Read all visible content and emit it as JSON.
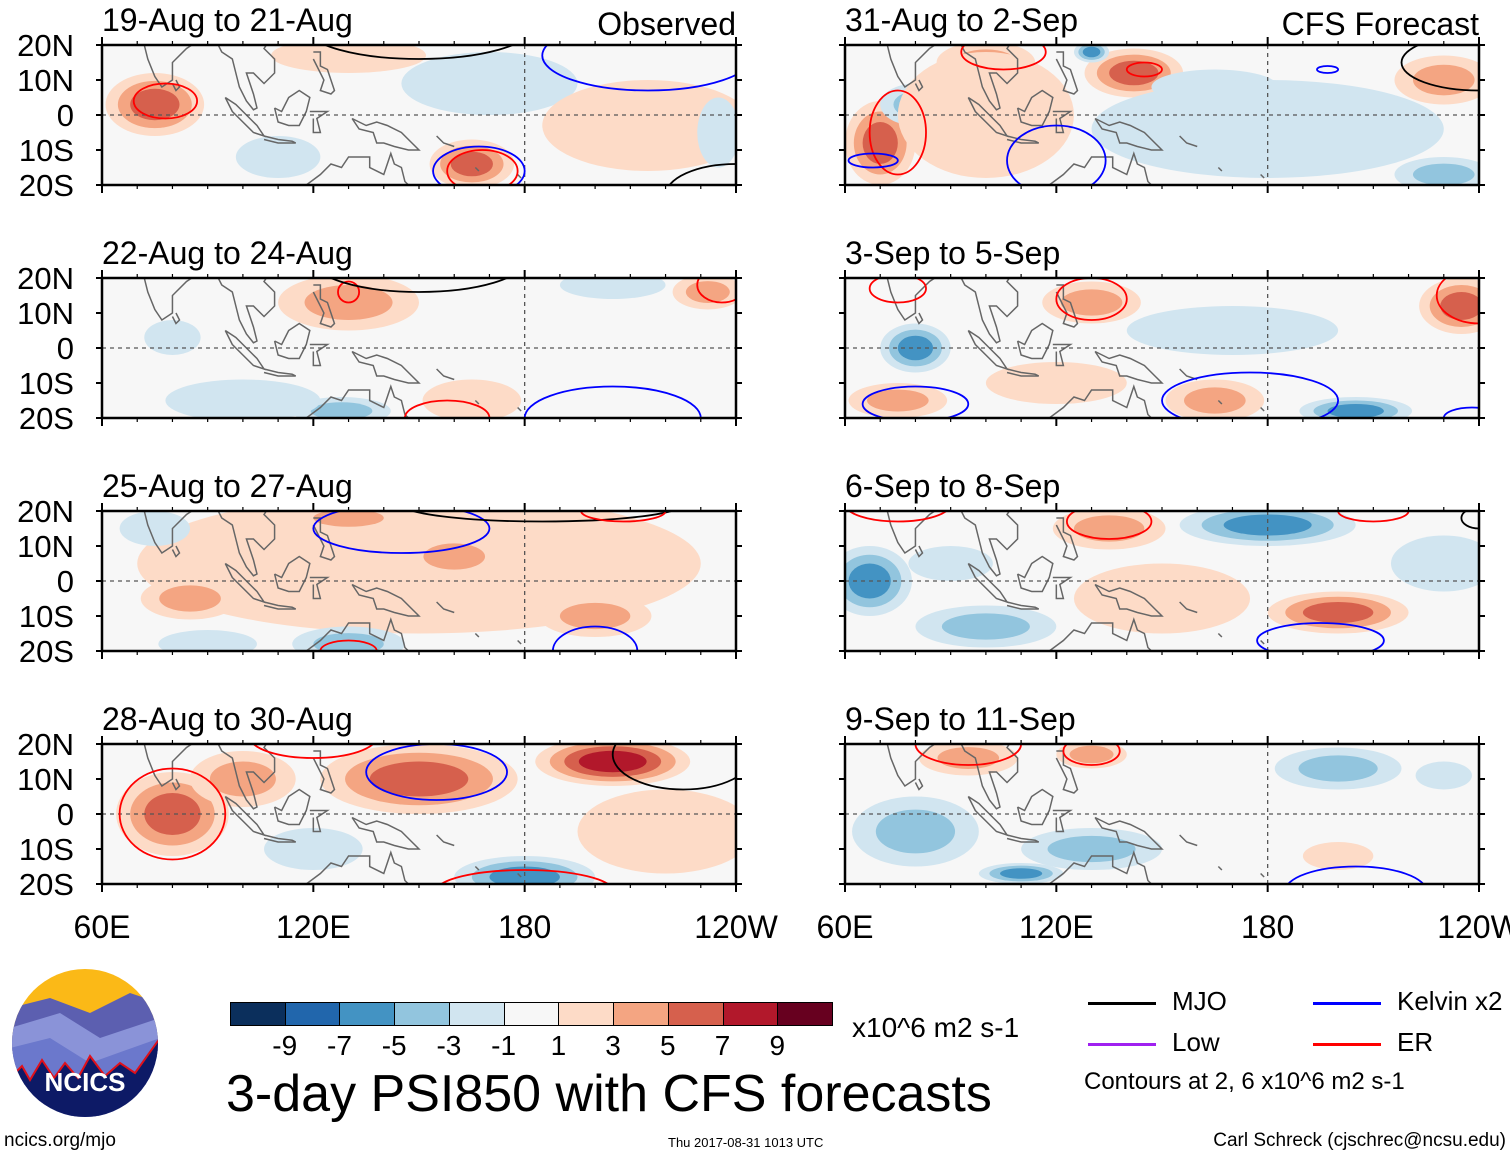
{
  "chart_data": {
    "type": "heatmap",
    "title": "3-day PSI850 with CFS forecasts",
    "units": "x10^6 m2 s-1",
    "contour_note": "Contours at 2, 6 x10^6 m2 s-1",
    "xticks": [
      "60E",
      "120E",
      "180",
      "120W"
    ],
    "yticks": [
      "20N",
      "10N",
      "0",
      "10S",
      "20S"
    ],
    "xlim": [
      60,
      240
    ],
    "ylim": [
      -20,
      20
    ],
    "colorbar": {
      "labels": [
        "-9",
        "-7",
        "-5",
        "-3",
        "-1",
        "1",
        "3",
        "5",
        "7",
        "9"
      ],
      "colors": [
        "#0b2f5c",
        "#2166ac",
        "#4393c3",
        "#92c5de",
        "#d1e5f0",
        "#f7f7f7",
        "#fddbc7",
        "#f4a582",
        "#d6604d",
        "#b2182b",
        "#67001f"
      ]
    },
    "legend": [
      {
        "label": "MJO",
        "color": "#000000"
      },
      {
        "label": "Kelvin x2",
        "color": "#0000ff"
      },
      {
        "label": "Low",
        "color": "#a020f0"
      },
      {
        "label": "ER",
        "color": "#ff0000"
      }
    ],
    "panels": [
      {
        "title": "19-Aug to 21-Aug",
        "tag": "Observed",
        "anomalies": [
          [
            75,
            3,
            14,
            9,
            5
          ],
          [
            130,
            17,
            22,
            5,
            2
          ],
          [
            170,
            9,
            25,
            9,
            -2
          ],
          [
            165,
            -14,
            12,
            7,
            6
          ],
          [
            215,
            -3,
            30,
            13,
            2
          ],
          [
            110,
            -12,
            12,
            6,
            -2
          ],
          [
            235,
            -5,
            6,
            10,
            -2
          ]
        ],
        "contours": [
          [
            "ER",
            78,
            4,
            9,
            5
          ],
          [
            "ER",
            168,
            -16,
            10,
            6
          ],
          [
            "Kelvin",
            167,
            -16,
            13,
            7
          ],
          [
            "MJO",
            150,
            25,
            32,
            9
          ],
          [
            "Kelvin",
            215,
            17,
            30,
            10
          ],
          [
            "MJO",
            240,
            -23,
            20,
            9
          ]
        ]
      },
      {
        "title": "22-Aug to 24-Aug",
        "tag": "",
        "anomalies": [
          [
            130,
            13,
            20,
            8,
            4
          ],
          [
            205,
            18,
            15,
            4,
            -2
          ],
          [
            128,
            -18,
            14,
            4,
            -4
          ],
          [
            232,
            16,
            10,
            5,
            3
          ],
          [
            165,
            -15,
            14,
            6,
            2
          ],
          [
            80,
            3,
            8,
            5,
            -2
          ],
          [
            100,
            -15,
            22,
            6,
            -1
          ]
        ],
        "contours": [
          [
            "ER",
            130,
            16,
            3,
            3
          ],
          [
            "MJO",
            150,
            25,
            30,
            9
          ],
          [
            "Kelvin",
            205,
            -20,
            25,
            9
          ],
          [
            "ER",
            236,
            18,
            7,
            5
          ],
          [
            "ER",
            158,
            -20,
            12,
            5
          ]
        ]
      },
      {
        "title": "25-Aug to 27-Aug",
        "tag": "",
        "anomalies": [
          [
            150,
            5,
            80,
            20,
            2
          ],
          [
            130,
            18,
            16,
            4,
            4
          ],
          [
            160,
            7,
            14,
            6,
            4
          ],
          [
            85,
            -5,
            14,
            6,
            4
          ],
          [
            200,
            -10,
            16,
            6,
            4
          ],
          [
            130,
            -18,
            16,
            5,
            -4
          ],
          [
            90,
            -18,
            14,
            4,
            -2
          ],
          [
            75,
            15,
            10,
            5,
            -1
          ]
        ],
        "contours": [
          [
            "Kelvin",
            145,
            15,
            25,
            7
          ],
          [
            "MJO",
            185,
            22,
            40,
            5
          ],
          [
            "ER",
            208,
            20,
            12,
            3
          ],
          [
            "Kelvin",
            200,
            -20,
            12,
            7
          ],
          [
            "ER",
            130,
            -20,
            8,
            3
          ]
        ]
      },
      {
        "title": "28-Aug to 30-Aug",
        "tag": "",
        "anomalies": [
          [
            80,
            0,
            16,
            12,
            6
          ],
          [
            150,
            10,
            28,
            10,
            5
          ],
          [
            205,
            15,
            22,
            7,
            7
          ],
          [
            180,
            -18,
            20,
            6,
            -6
          ],
          [
            120,
            -10,
            14,
            6,
            -2
          ],
          [
            100,
            10,
            15,
            8,
            3
          ],
          [
            220,
            -5,
            25,
            12,
            2
          ]
        ],
        "contours": [
          [
            "ER",
            80,
            0,
            15,
            13
          ],
          [
            "Kelvin",
            155,
            12,
            20,
            8
          ],
          [
            "MJO",
            225,
            17,
            20,
            10
          ],
          [
            "ER",
            120,
            22,
            18,
            6
          ],
          [
            "ER",
            180,
            -22,
            25,
            6
          ]
        ]
      },
      {
        "title": "31-Aug to 2-Sep",
        "tag": "CFS Forecast",
        "anomalies": [
          [
            70,
            -8,
            10,
            12,
            5
          ],
          [
            80,
            3,
            10,
            6,
            -4
          ],
          [
            100,
            15,
            14,
            6,
            4
          ],
          [
            142,
            12,
            14,
            7,
            5
          ],
          [
            130,
            18,
            5,
            3,
            -5
          ],
          [
            165,
            8,
            18,
            5,
            -2
          ],
          [
            230,
            10,
            14,
            7,
            4
          ],
          [
            230,
            -17,
            14,
            5,
            -4
          ],
          [
            180,
            -4,
            50,
            14,
            -1
          ],
          [
            100,
            0,
            25,
            18,
            2
          ]
        ],
        "contours": [
          [
            "ER",
            75,
            -5,
            8,
            12
          ],
          [
            "Kelvin",
            68,
            -13,
            7,
            2
          ],
          [
            "ER",
            145,
            13,
            5,
            2
          ],
          [
            "Kelvin",
            120,
            -13,
            14,
            10
          ],
          [
            "MJO",
            240,
            15,
            22,
            8
          ],
          [
            "Kelvin",
            197,
            13,
            3,
            1
          ],
          [
            "ER",
            105,
            18,
            12,
            5
          ]
        ]
      },
      {
        "title": "3-Sep to 5-Sep",
        "tag": "",
        "anomalies": [
          [
            80,
            0,
            10,
            7,
            -5
          ],
          [
            130,
            13,
            14,
            6,
            4
          ],
          [
            235,
            12,
            12,
            8,
            6
          ],
          [
            170,
            5,
            30,
            7,
            -2
          ],
          [
            165,
            -15,
            14,
            6,
            4
          ],
          [
            205,
            -18,
            16,
            4,
            -5
          ],
          [
            75,
            -15,
            14,
            5,
            3
          ],
          [
            120,
            -10,
            20,
            6,
            2
          ]
        ],
        "contours": [
          [
            "ER",
            75,
            17,
            8,
            4
          ],
          [
            "ER",
            130,
            14,
            10,
            6
          ],
          [
            "Kelvin",
            80,
            -16,
            15,
            5
          ],
          [
            "Kelvin",
            175,
            -15,
            25,
            8
          ],
          [
            "Kelvin",
            238,
            -20,
            8,
            3
          ],
          [
            "ER",
            240,
            15,
            12,
            8
          ]
        ]
      },
      {
        "title": "6-Sep to 8-Sep",
        "tag": "",
        "anomalies": [
          [
            67,
            0,
            12,
            10,
            -5
          ],
          [
            180,
            16,
            25,
            6,
            -5
          ],
          [
            200,
            -9,
            20,
            6,
            5
          ],
          [
            100,
            -13,
            20,
            6,
            -3
          ],
          [
            135,
            15,
            16,
            6,
            3
          ],
          [
            90,
            5,
            12,
            5,
            -2
          ],
          [
            150,
            -5,
            25,
            10,
            2
          ],
          [
            230,
            5,
            15,
            8,
            -2
          ]
        ],
        "contours": [
          [
            "ER",
            135,
            17,
            12,
            5
          ],
          [
            "Kelvin",
            195,
            -17,
            18,
            5
          ],
          [
            "ER",
            210,
            20,
            10,
            3
          ],
          [
            "MJO",
            240,
            18,
            5,
            3
          ],
          [
            "ER",
            75,
            22,
            15,
            5
          ]
        ]
      },
      {
        "title": "9-Sep to 11-Sep",
        "tag": "",
        "anomalies": [
          [
            80,
            -5,
            18,
            10,
            -3
          ],
          [
            95,
            16,
            14,
            5,
            3
          ],
          [
            200,
            13,
            18,
            6,
            -4
          ],
          [
            130,
            -10,
            20,
            6,
            -3
          ],
          [
            110,
            -17,
            12,
            3,
            -5
          ],
          [
            130,
            17,
            10,
            4,
            3
          ],
          [
            230,
            11,
            8,
            4,
            -2
          ],
          [
            200,
            -12,
            10,
            4,
            2
          ]
        ],
        "contours": [
          [
            "ER",
            95,
            20,
            15,
            6
          ],
          [
            "ER",
            130,
            18,
            8,
            4
          ],
          [
            "Kelvin",
            205,
            -22,
            20,
            7
          ]
        ]
      }
    ]
  },
  "logo": {
    "text": "NCICS"
  },
  "footer": {
    "left": "ncics.org/mjo",
    "center": "Thu 2017-08-31 1013 UTC",
    "right": "Carl Schreck (cjschrec@ncsu.edu)"
  }
}
